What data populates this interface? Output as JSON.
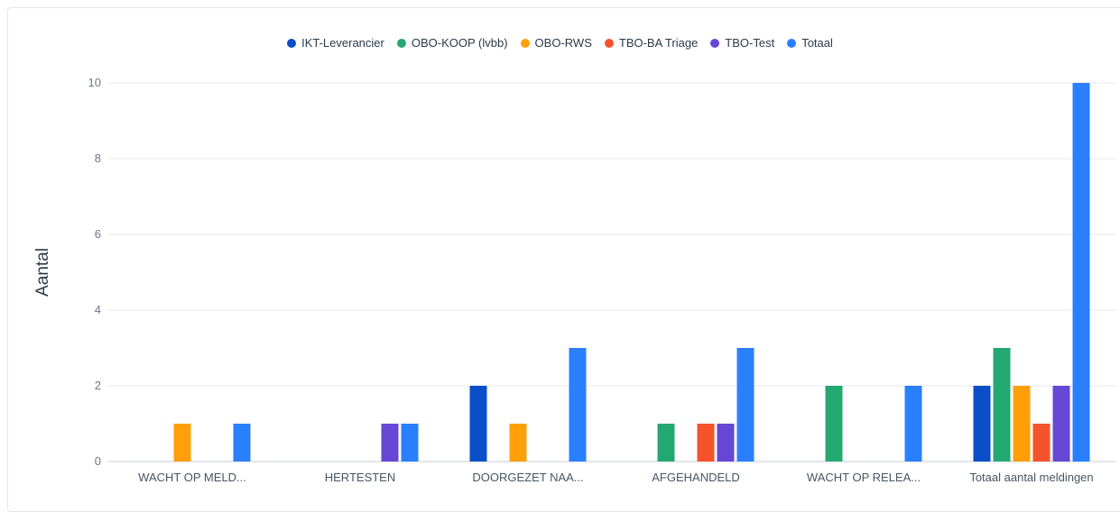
{
  "chart_data": {
    "type": "bar",
    "title": "",
    "xlabel": "",
    "ylabel": "Aantal",
    "ylim": [
      0,
      10
    ],
    "yticks": [
      "0",
      "2",
      "4",
      "6",
      "8",
      "10"
    ],
    "grid": true,
    "legend_position": "top-center",
    "categories": [
      "WACHT OP MELD...",
      "HERTESTEN",
      "DOORGEZET NAA...",
      "AFGEHANDELD",
      "WACHT OP RELEA...",
      "Totaal aantal meldingen"
    ],
    "series": [
      {
        "name": "IKT-Leverancier",
        "color": "#0a4fc8",
        "values": [
          0,
          0,
          2,
          0,
          0,
          2
        ]
      },
      {
        "name": "OBO-KOOP (lvbb)",
        "color": "#24a872",
        "values": [
          0,
          0,
          0,
          1,
          2,
          3
        ]
      },
      {
        "name": "OBO-RWS",
        "color": "#ff9f0a",
        "values": [
          1,
          0,
          1,
          0,
          0,
          2
        ]
      },
      {
        "name": "TBO-BA Triage",
        "color": "#f4532c",
        "values": [
          0,
          0,
          0,
          1,
          0,
          1
        ]
      },
      {
        "name": "TBO-Test",
        "color": "#6647d6",
        "values": [
          0,
          1,
          0,
          1,
          0,
          2
        ]
      },
      {
        "name": "Totaal",
        "color": "#2a7fff",
        "values": [
          1,
          1,
          3,
          3,
          2,
          10
        ]
      }
    ]
  }
}
